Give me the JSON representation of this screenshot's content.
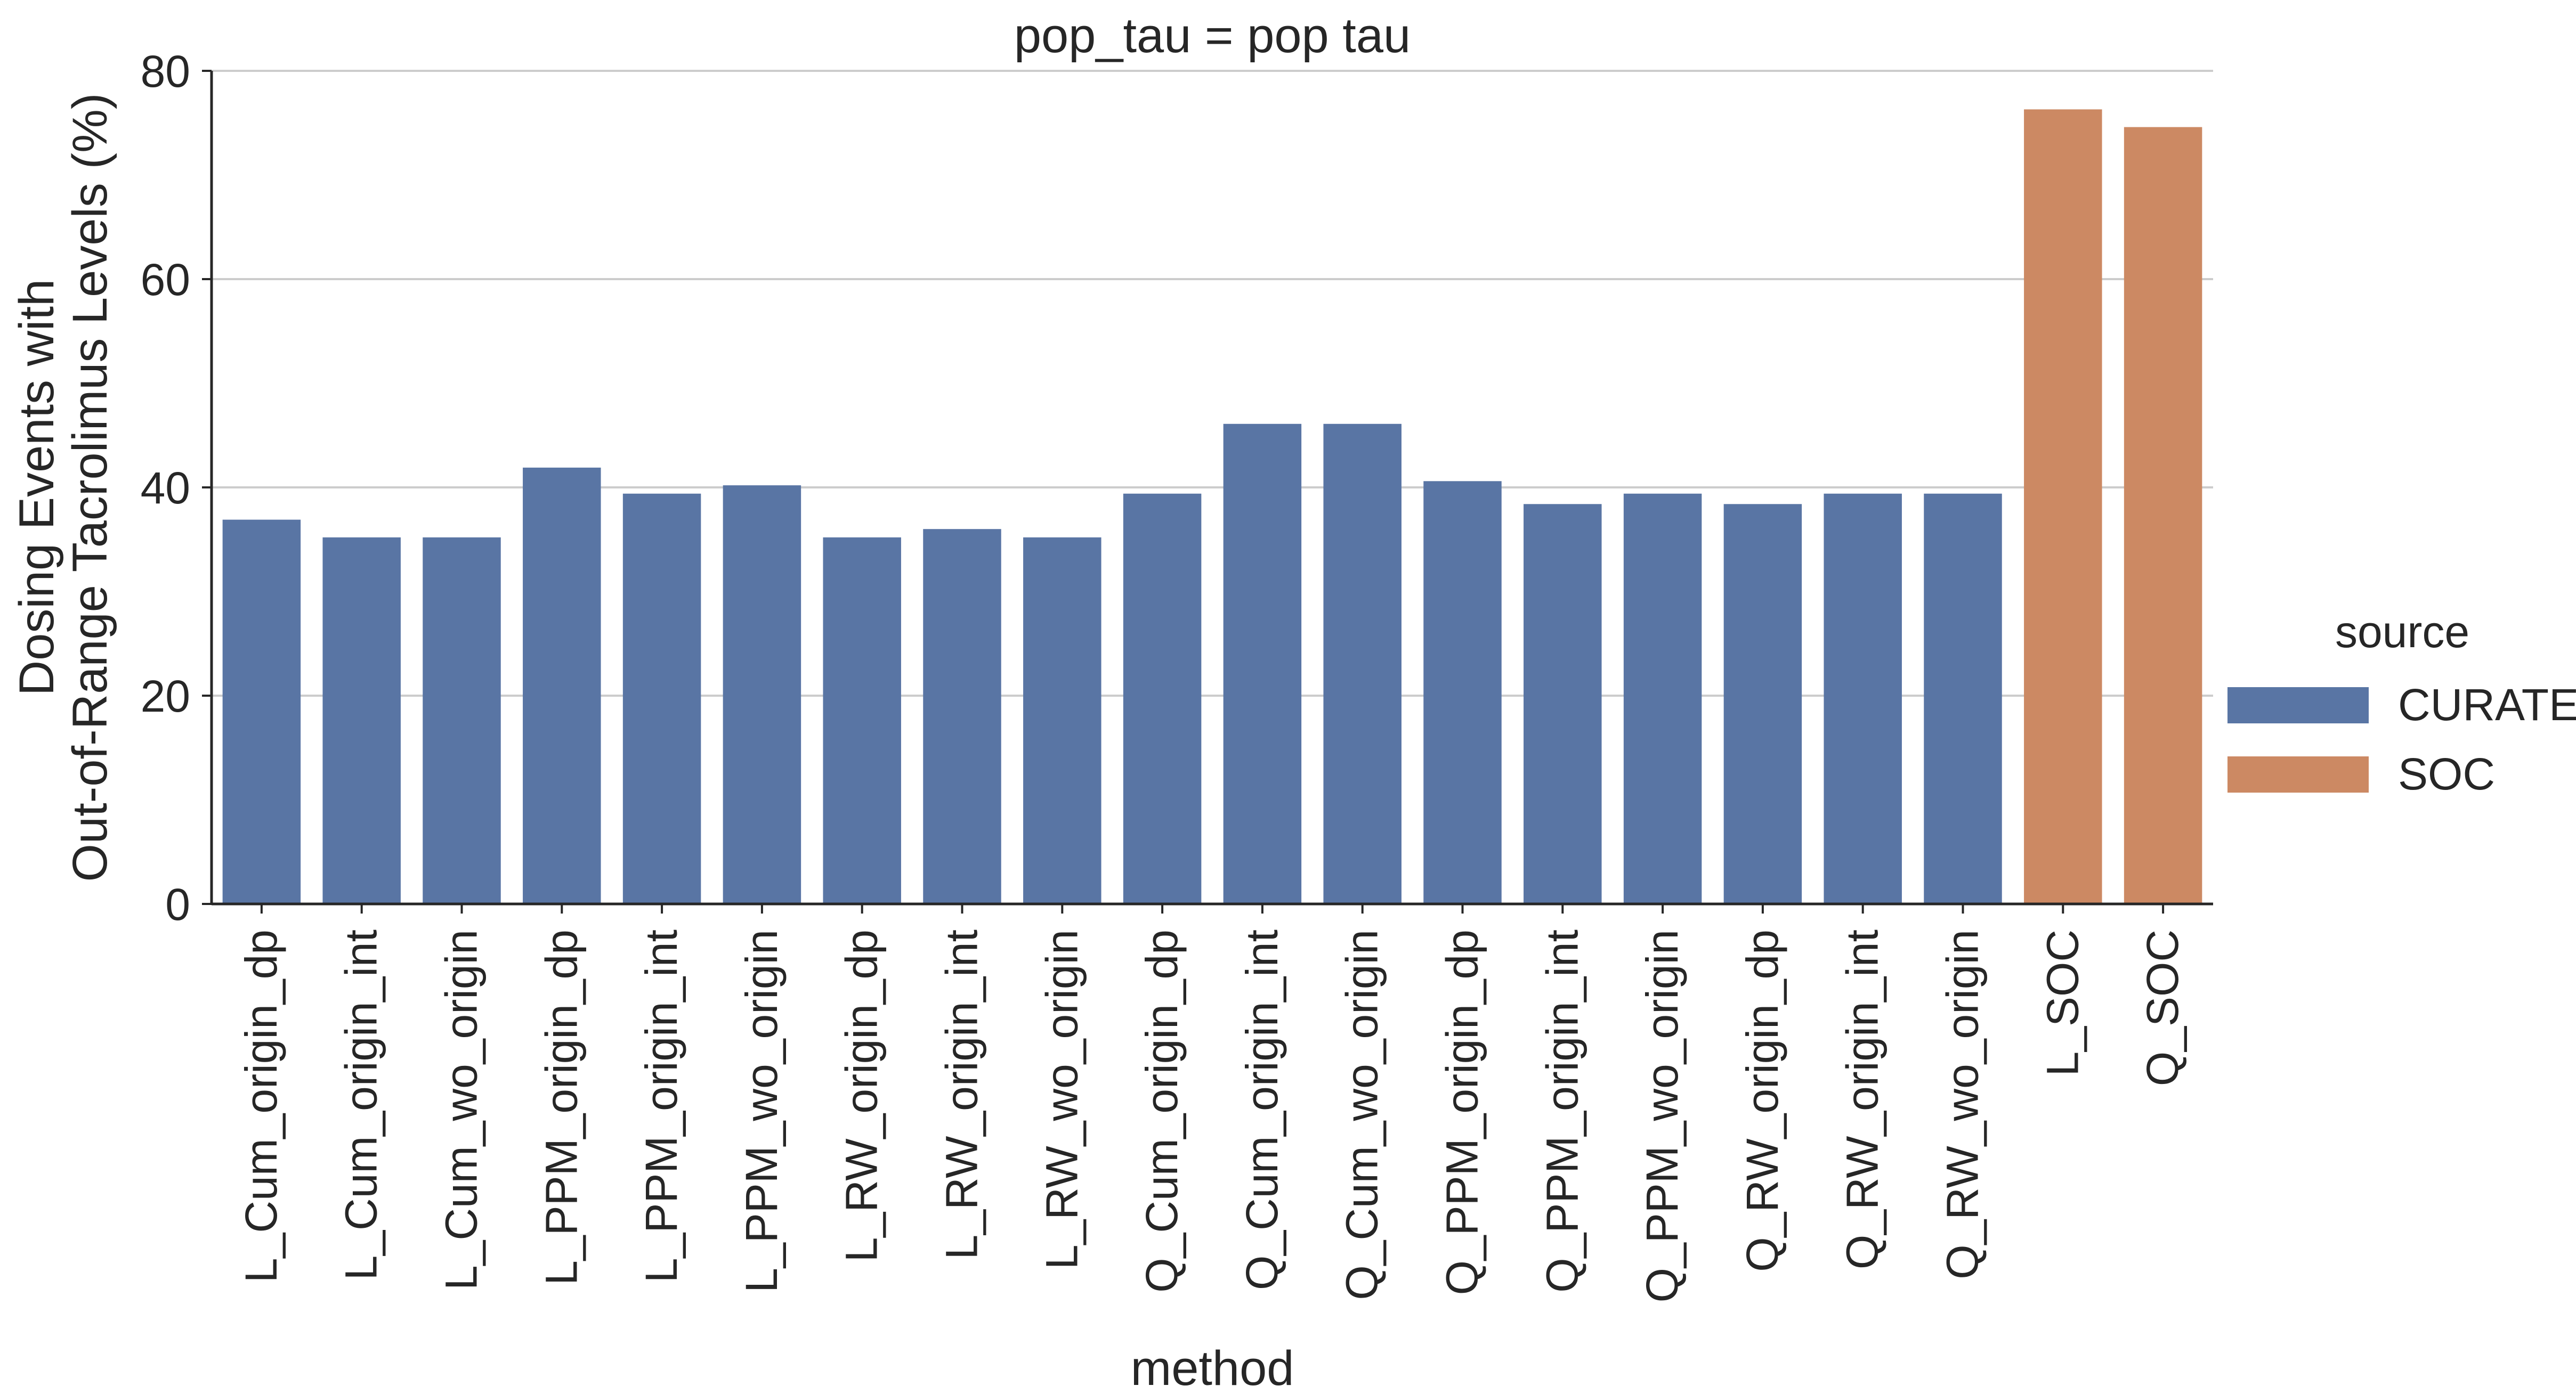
{
  "chart_data": {
    "type": "bar",
    "title": "pop_tau = pop tau",
    "xlabel": "method",
    "ylabel": [
      "Dosing Events with",
      "Out-of-Range Tacrolimus Levels (%)"
    ],
    "ylim": [
      0,
      80
    ],
    "yticks": [
      0,
      20,
      40,
      60,
      80
    ],
    "grid": true,
    "legend": {
      "title": "source",
      "placement": "right",
      "entries": [
        {
          "name": "CURATE",
          "color": "#5975a4"
        },
        {
          "name": "SOC",
          "color": "#cc8963"
        }
      ]
    },
    "categories": [
      "L_Cum_origin_dp",
      "L_Cum_origin_int",
      "L_Cum_wo_origin",
      "L_PPM_origin_dp",
      "L_PPM_origin_int",
      "L_PPM_wo_origin",
      "L_RW_origin_dp",
      "L_RW_origin_int",
      "L_RW_wo_origin",
      "Q_Cum_origin_dp",
      "Q_Cum_origin_int",
      "Q_Cum_wo_origin",
      "Q_PPM_origin_dp",
      "Q_PPM_origin_int",
      "Q_PPM_wo_origin",
      "Q_RW_origin_dp",
      "Q_RW_origin_int",
      "Q_RW_wo_origin",
      "L_SOC",
      "Q_SOC"
    ],
    "values": [
      36.9,
      35.2,
      35.2,
      41.9,
      39.4,
      40.2,
      35.2,
      36.0,
      35.2,
      39.4,
      46.1,
      46.1,
      40.6,
      38.4,
      39.4,
      38.4,
      39.4,
      39.4,
      76.3,
      74.6
    ],
    "source": [
      "CURATE",
      "CURATE",
      "CURATE",
      "CURATE",
      "CURATE",
      "CURATE",
      "CURATE",
      "CURATE",
      "CURATE",
      "CURATE",
      "CURATE",
      "CURATE",
      "CURATE",
      "CURATE",
      "CURATE",
      "CURATE",
      "CURATE",
      "CURATE",
      "SOC",
      "SOC"
    ]
  }
}
